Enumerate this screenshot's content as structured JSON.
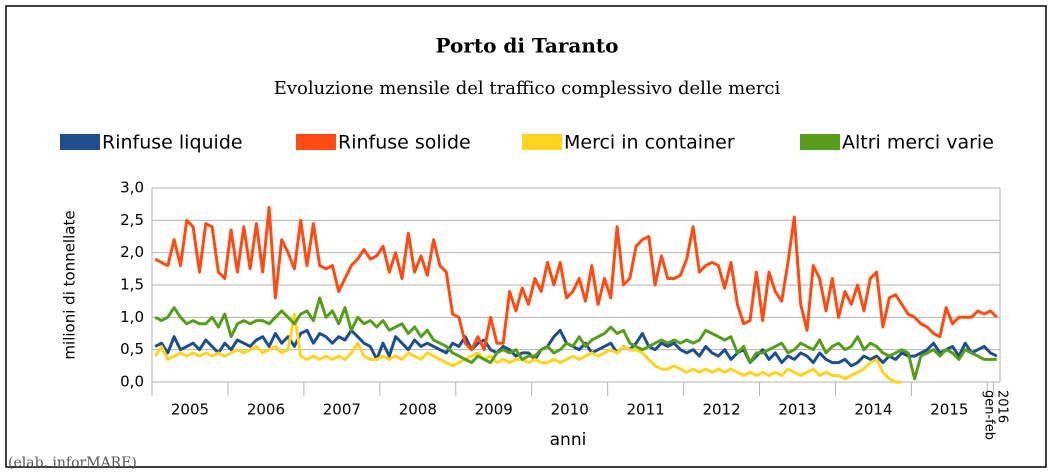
{
  "chart_data": {
    "type": "line",
    "title": "Porto di Taranto",
    "subtitle": "Evoluzione mensile del traffico complessivo delle merci",
    "x_label": "anni",
    "y_label": "milioni di tonnellate",
    "note": "(elab. inforMARE)",
    "categories": [
      "2005",
      null,
      null,
      null,
      null,
      null,
      null,
      null,
      null,
      null,
      null,
      null,
      "2006",
      null,
      null,
      null,
      null,
      null,
      null,
      null,
      null,
      null,
      null,
      null,
      "2007",
      null,
      null,
      null,
      null,
      null,
      null,
      null,
      null,
      null,
      null,
      null,
      "2008",
      null,
      null,
      null,
      null,
      null,
      null,
      null,
      null,
      null,
      null,
      null,
      "2009",
      null,
      null,
      null,
      null,
      null,
      null,
      null,
      null,
      null,
      null,
      null,
      "2010",
      null,
      null,
      null,
      null,
      null,
      null,
      null,
      null,
      null,
      null,
      null,
      "2011",
      null,
      null,
      null,
      null,
      null,
      null,
      null,
      null,
      null,
      null,
      null,
      "2012",
      null,
      null,
      null,
      null,
      null,
      null,
      null,
      null,
      null,
      null,
      null,
      "2013",
      null,
      null,
      null,
      null,
      null,
      null,
      null,
      null,
      null,
      null,
      null,
      "2014",
      null,
      null,
      null,
      null,
      null,
      null,
      null,
      null,
      null,
      null,
      null,
      "2015",
      null,
      null,
      null,
      null,
      null,
      null,
      null,
      null,
      null,
      null,
      null,
      "2016",
      "gen-feb"
    ],
    "ylim": [
      0,
      3
    ],
    "yticks": [
      {
        "value": 0,
        "label": "0,0"
      },
      {
        "value": 0.5,
        "label": "0,5"
      },
      {
        "value": 1,
        "label": "1,0"
      },
      {
        "value": 1.5,
        "label": "1,5"
      },
      {
        "value": 2,
        "label": "2,0"
      },
      {
        "value": 2.5,
        "label": "2,5"
      },
      {
        "value": 3,
        "label": "3,0"
      }
    ],
    "grid": true,
    "legend": "top",
    "series": [
      {
        "name": "Rinfuse liquide",
        "color": "#1f4e8c",
        "values": [
          0.55,
          0.6,
          0.45,
          0.7,
          0.5,
          0.55,
          0.6,
          0.5,
          0.65,
          0.55,
          0.45,
          0.6,
          0.5,
          0.65,
          0.6,
          0.55,
          0.65,
          0.7,
          0.55,
          0.75,
          0.6,
          0.7,
          0.55,
          0.75,
          0.8,
          0.6,
          0.75,
          0.7,
          0.6,
          0.7,
          0.65,
          0.8,
          0.7,
          0.6,
          0.55,
          0.35,
          0.6,
          0.4,
          0.7,
          0.6,
          0.5,
          0.65,
          0.55,
          0.6,
          0.55,
          0.5,
          0.45,
          0.6,
          0.55,
          0.7,
          0.5,
          0.6,
          0.65,
          0.5,
          0.45,
          0.55,
          0.5,
          0.4,
          0.45,
          0.45,
          0.35,
          0.5,
          0.55,
          0.7,
          0.8,
          0.6,
          0.55,
          0.5,
          0.6,
          0.45,
          0.5,
          0.55,
          0.6,
          0.45,
          0.55,
          0.5,
          0.6,
          0.75,
          0.55,
          0.5,
          0.6,
          0.55,
          0.6,
          0.5,
          0.45,
          0.5,
          0.4,
          0.55,
          0.45,
          0.4,
          0.5,
          0.35,
          0.45,
          0.5,
          0.3,
          0.4,
          0.5,
          0.35,
          0.45,
          0.3,
          0.4,
          0.35,
          0.45,
          0.4,
          0.3,
          0.45,
          0.35,
          0.3,
          0.3,
          0.35,
          0.25,
          0.3,
          0.4,
          0.35,
          0.4,
          0.3,
          0.4,
          0.35,
          0.45,
          0.4,
          0.4,
          0.45,
          0.5,
          0.6,
          0.45,
          0.5,
          0.55,
          0.4,
          0.6,
          0.45,
          0.5,
          0.55,
          0.45,
          0.4
        ]
      },
      {
        "name": "Rinfuse solide",
        "color": "#ff4a12",
        "values": [
          1.9,
          1.85,
          1.8,
          2.2,
          1.8,
          2.5,
          2.4,
          1.7,
          2.45,
          2.4,
          1.7,
          1.6,
          2.35,
          1.7,
          2.4,
          1.75,
          2.45,
          1.7,
          2.7,
          1.3,
          2.2,
          2.0,
          1.75,
          2.5,
          1.8,
          2.45,
          1.8,
          1.75,
          1.8,
          1.4,
          1.6,
          1.8,
          1.9,
          2.05,
          1.9,
          1.95,
          2.1,
          1.7,
          2.0,
          1.6,
          2.3,
          1.7,
          1.95,
          1.65,
          2.2,
          1.8,
          1.7,
          1.05,
          1.0,
          0.6,
          0.5,
          0.7,
          0.5,
          1.0,
          0.6,
          0.6,
          1.4,
          1.1,
          1.45,
          1.2,
          1.6,
          1.4,
          1.85,
          1.5,
          1.85,
          1.3,
          1.4,
          1.6,
          1.25,
          1.8,
          1.2,
          1.6,
          1.3,
          2.4,
          1.5,
          1.6,
          2.1,
          2.2,
          2.25,
          1.5,
          1.95,
          1.6,
          1.6,
          1.65,
          1.9,
          2.4,
          1.7,
          1.8,
          1.85,
          1.8,
          1.45,
          1.85,
          1.2,
          0.9,
          0.95,
          1.7,
          0.95,
          1.7,
          1.4,
          1.25,
          1.85,
          2.55,
          1.2,
          0.8,
          1.8,
          1.6,
          1.1,
          1.6,
          1.0,
          1.4,
          1.2,
          1.5,
          1.1,
          1.6,
          1.7,
          0.85,
          1.3,
          1.35,
          1.2,
          1.05,
          1.0,
          0.9,
          0.85,
          0.75,
          0.7,
          1.15,
          0.9,
          1.0,
          1.0,
          1.0,
          1.1,
          1.05,
          1.1,
          1.0
        ]
      },
      {
        "name": "Merci in container",
        "color": "#ffd320",
        "values": [
          0.4,
          0.55,
          0.35,
          0.4,
          0.45,
          0.4,
          0.45,
          0.4,
          0.45,
          0.4,
          0.45,
          0.4,
          0.45,
          0.5,
          0.45,
          0.5,
          0.55,
          0.45,
          0.5,
          0.55,
          0.45,
          0.5,
          1.05,
          0.4,
          0.35,
          0.4,
          0.35,
          0.4,
          0.35,
          0.4,
          0.35,
          0.45,
          0.6,
          0.4,
          0.35,
          0.35,
          0.4,
          0.35,
          0.4,
          0.35,
          0.45,
          0.4,
          0.35,
          0.45,
          0.4,
          0.35,
          0.3,
          0.25,
          0.3,
          0.35,
          0.4,
          0.45,
          0.35,
          0.4,
          0.3,
          0.35,
          0.3,
          0.35,
          0.35,
          0.3,
          0.35,
          0.3,
          0.3,
          0.35,
          0.3,
          0.35,
          0.4,
          0.35,
          0.4,
          0.45,
          0.4,
          0.45,
          0.5,
          0.45,
          0.55,
          0.5,
          0.5,
          0.45,
          0.35,
          0.25,
          0.2,
          0.2,
          0.25,
          0.2,
          0.15,
          0.2,
          0.15,
          0.2,
          0.15,
          0.2,
          0.15,
          0.2,
          0.15,
          0.1,
          0.15,
          0.1,
          0.15,
          0.1,
          0.15,
          0.1,
          0.2,
          0.15,
          0.1,
          0.15,
          0.2,
          0.1,
          0.15,
          0.1,
          0.1,
          0.05,
          0.1,
          0.15,
          0.2,
          0.3,
          0.35,
          0.15,
          0.05,
          0.0,
          0.0,
          null,
          null,
          null,
          null,
          null,
          null,
          null,
          null,
          null,
          null,
          null,
          null,
          null,
          null,
          null
        ]
      },
      {
        "name": "Altri merci varie",
        "color": "#579d1c",
        "values": [
          1.0,
          0.95,
          1.0,
          1.15,
          1.0,
          0.9,
          0.95,
          0.9,
          0.9,
          1.0,
          0.85,
          1.05,
          0.7,
          0.9,
          0.95,
          0.9,
          0.95,
          0.95,
          0.9,
          1.0,
          1.1,
          1.0,
          0.9,
          1.05,
          1.1,
          0.95,
          1.3,
          1.0,
          1.1,
          0.9,
          1.15,
          0.8,
          1.0,
          0.9,
          0.95,
          0.85,
          0.95,
          0.8,
          0.85,
          0.9,
          0.75,
          0.85,
          0.7,
          0.8,
          0.65,
          0.6,
          0.55,
          0.45,
          0.4,
          0.35,
          0.3,
          0.4,
          0.35,
          0.3,
          0.45,
          0.5,
          0.45,
          0.5,
          0.35,
          0.4,
          0.4,
          0.5,
          0.55,
          0.45,
          0.5,
          0.6,
          0.55,
          0.7,
          0.55,
          0.65,
          0.7,
          0.75,
          0.85,
          0.75,
          0.8,
          0.6,
          0.55,
          0.5,
          0.55,
          0.6,
          0.65,
          0.6,
          0.65,
          0.6,
          0.65,
          0.6,
          0.65,
          0.8,
          0.75,
          0.7,
          0.65,
          0.7,
          0.45,
          0.55,
          0.3,
          0.45,
          0.45,
          0.5,
          0.55,
          0.6,
          0.45,
          0.5,
          0.6,
          0.55,
          0.5,
          0.65,
          0.45,
          0.55,
          0.6,
          0.5,
          0.55,
          0.7,
          0.5,
          0.6,
          0.55,
          0.45,
          0.4,
          0.45,
          0.5,
          0.45,
          0.05,
          0.4,
          0.45,
          0.5,
          0.4,
          0.5,
          0.45,
          0.35,
          0.5,
          0.45,
          0.4,
          0.35,
          0.35,
          0.35
        ]
      }
    ]
  }
}
